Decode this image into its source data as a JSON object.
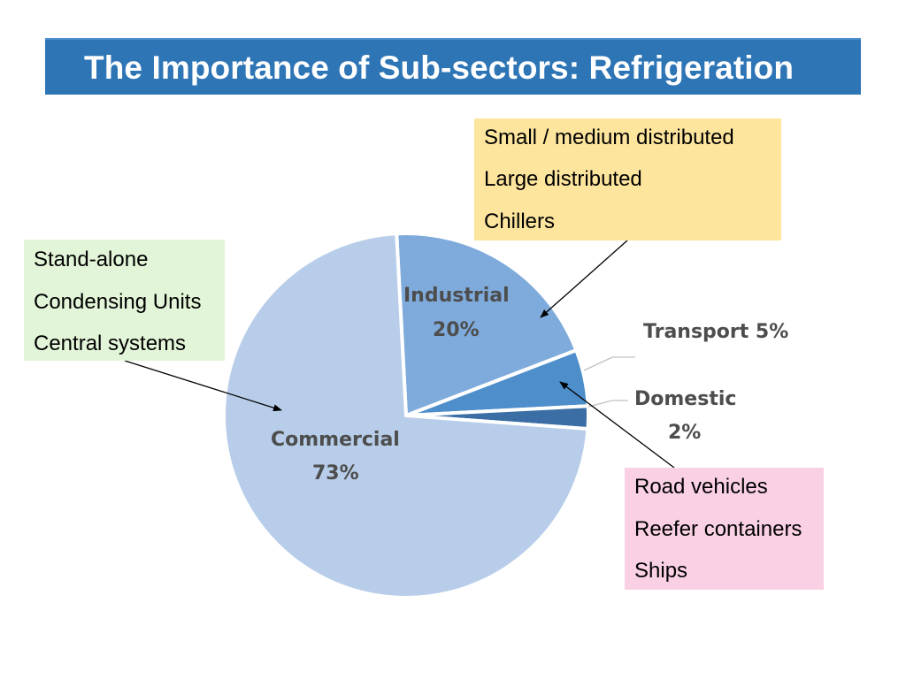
{
  "slide": {
    "title": "The Importance of Sub-sectors: Refrigeration"
  },
  "callouts": {
    "industrial": {
      "lines": [
        "Small / medium distributed",
        "Large distributed",
        "Chillers"
      ]
    },
    "commercial": {
      "lines": [
        "Stand-alone",
        "Condensing Units",
        "Central systems"
      ]
    },
    "transport": {
      "lines": [
        "Road vehicles",
        "Reefer containers",
        "Ships"
      ]
    }
  },
  "chart_data": {
    "type": "pie",
    "title": "",
    "slices": [
      {
        "name": "Industrial",
        "value": 20,
        "label": "20%",
        "color": "#7fabdc"
      },
      {
        "name": "Transport",
        "value": 5,
        "label": "5%",
        "color": "#4d8ecb"
      },
      {
        "name": "Domestic",
        "value": 2,
        "label": "2%",
        "color": "#3a6ea5"
      },
      {
        "name": "Commercial",
        "value": 73,
        "label": "73%",
        "color": "#b7cde9"
      }
    ],
    "label_color": "#4d4d4d",
    "separator_color": "#ffffff",
    "leader_line_color": "#c0c0c0"
  },
  "colors": {
    "title_bar": "#2e75b6",
    "industrial_callout": "#fde59e",
    "commercial_callout": "#e3f5d8",
    "transport_callout": "#f9d0e4"
  }
}
